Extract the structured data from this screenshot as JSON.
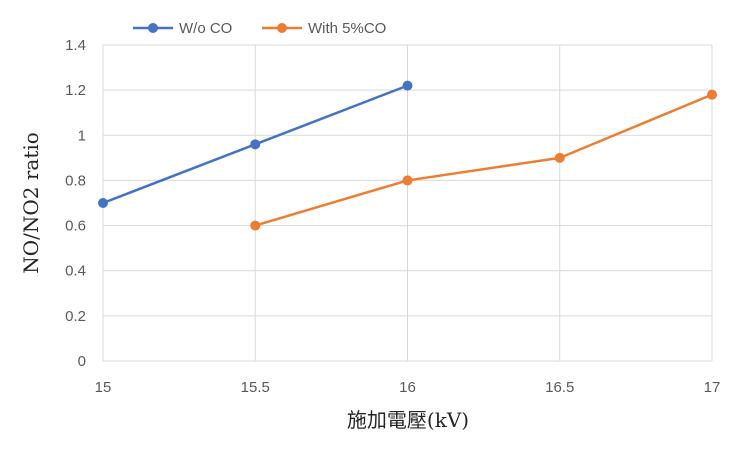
{
  "chart_data": {
    "type": "line",
    "title": "",
    "xlabel": "施加電壓(kV)",
    "ylabel": "NO/NO2 ratio",
    "xlim": [
      15,
      17
    ],
    "ylim": [
      0,
      1.4
    ],
    "x_ticks": [
      "15",
      "15.5",
      "16",
      "16.5",
      "17"
    ],
    "y_ticks": [
      "0",
      "0.2",
      "0.4",
      "0.6",
      "0.8",
      "1",
      "1.2",
      "1.4"
    ],
    "grid": true,
    "legend_position": "top",
    "series": [
      {
        "name": "W/o CO",
        "color": "#4472C4",
        "x": [
          15,
          15.5,
          16
        ],
        "y": [
          0.7,
          0.96,
          1.22
        ]
      },
      {
        "name": "With 5%CO",
        "color": "#ED7D31",
        "x": [
          15.5,
          16,
          16.5,
          17
        ],
        "y": [
          0.6,
          0.8,
          0.9,
          1.18
        ]
      }
    ]
  }
}
